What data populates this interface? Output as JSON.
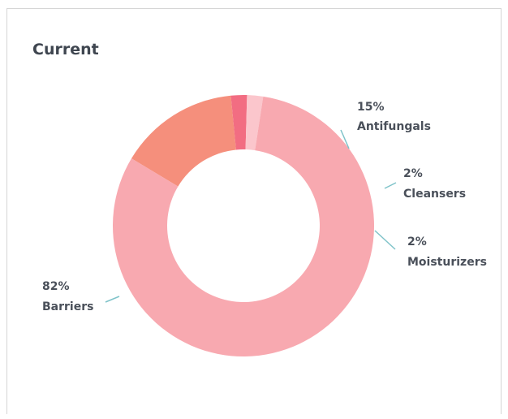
{
  "chart_data": {
    "type": "pie",
    "title": "Current",
    "donut": true,
    "slices": [
      {
        "label": "Antifungals",
        "value": 15,
        "value_label": "15%",
        "color": "#f58f7c"
      },
      {
        "label": "Cleansers",
        "value": 2,
        "value_label": "2%",
        "color": "#f26d82"
      },
      {
        "label": "Moisturizers",
        "value": 2,
        "value_label": "2%",
        "color": "#fbc6cc"
      },
      {
        "label": "Barriers",
        "value": 82,
        "value_label": "82%",
        "color": "#f8a9b0"
      }
    ],
    "leader_color": "#7fc3c9"
  }
}
